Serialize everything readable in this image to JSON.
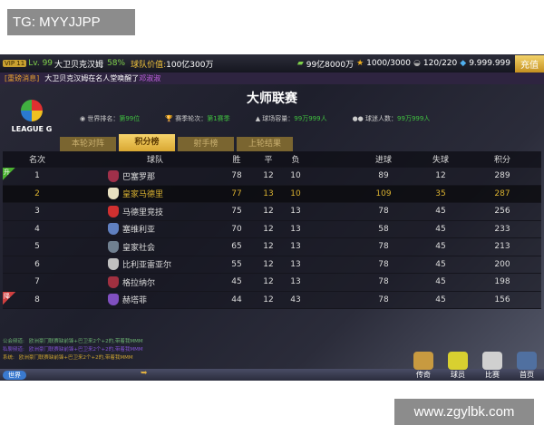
{
  "watermarks": {
    "top": "TG: MYYJJPP",
    "bottom": "www.zgylbk.com"
  },
  "topbar": {
    "vip": "VIP 11",
    "level": "Lv. 99",
    "player": "大卫贝克汉姆",
    "exp": "58%",
    "value_label": "球队价值:",
    "value": "100亿300万",
    "money": "99亿8000万",
    "stars": "1000/3000",
    "stamina": "120/220",
    "diamonds": "9.999.999",
    "charge": "充值"
  },
  "news": {
    "tag": "[重磅消息]",
    "text": "大卫贝克汉姆在名人堂唤醒了",
    "name": "邓淑淑"
  },
  "title": "大师联赛",
  "league_logo": "LEAGUE G",
  "stats": [
    {
      "label": "世界排名：",
      "value": "第99位"
    },
    {
      "label": "赛季轮次：",
      "value": "第1赛季"
    },
    {
      "label": "球场容量：",
      "value": "99万999人"
    },
    {
      "label": "球迷人数：",
      "value": "99万999人"
    }
  ],
  "tabs": [
    "本轮对阵",
    "积分榜",
    "射手榜",
    "上轮结果"
  ],
  "active_tab": 1,
  "table": {
    "headers": [
      "名次",
      "球队",
      "胜",
      "平",
      "负",
      "进球",
      "失球",
      "积分"
    ],
    "rows": [
      {
        "rank": "1",
        "team": "巴塞罗那",
        "w": "78",
        "d": "12",
        "l": "10",
        "gf": "89",
        "ga": "12",
        "pts": "289",
        "badge": "升",
        "crest": "#a0304a"
      },
      {
        "rank": "2",
        "team": "皇家马德里",
        "w": "77",
        "d": "13",
        "l": "10",
        "gf": "109",
        "ga": "35",
        "pts": "287",
        "crest": "#e8e0c0"
      },
      {
        "rank": "3",
        "team": "马德里竞技",
        "w": "75",
        "d": "12",
        "l": "13",
        "gf": "78",
        "ga": "45",
        "pts": "256",
        "crest": "#d03030"
      },
      {
        "rank": "4",
        "team": "塞维利亚",
        "w": "70",
        "d": "12",
        "l": "13",
        "gf": "58",
        "ga": "45",
        "pts": "233",
        "crest": "#6080c0"
      },
      {
        "rank": "5",
        "team": "皇家社会",
        "w": "65",
        "d": "12",
        "l": "13",
        "gf": "78",
        "ga": "45",
        "pts": "213",
        "crest": "#708090"
      },
      {
        "rank": "6",
        "team": "比利亚雷亚尔",
        "w": "55",
        "d": "12",
        "l": "13",
        "gf": "78",
        "ga": "45",
        "pts": "200",
        "crest": "#c0c0c0"
      },
      {
        "rank": "7",
        "team": "格拉纳尔",
        "w": "45",
        "d": "12",
        "l": "13",
        "gf": "78",
        "ga": "45",
        "pts": "198",
        "crest": "#a03040"
      },
      {
        "rank": "8",
        "team": "赫塔菲",
        "w": "44",
        "d": "12",
        "l": "43",
        "gf": "78",
        "ga": "45",
        "pts": "156",
        "badge": "降",
        "crest": "#8050c0"
      }
    ]
  },
  "chat": [
    {
      "channel": "公会频道:",
      "text": "欧洲豪门联赛缺前锋+巴卫来2个+2的,带着我MMM"
    },
    {
      "channel": "私聊频道:",
      "text": "欧洲豪门联赛缺前锋+巴卫来2个+2的,带着我MMM"
    },
    {
      "channel": "系统:",
      "text": "欧洲豪门联赛缺前锋+巴卫来2个+2的,带着我MMM"
    }
  ],
  "world_button": "世界",
  "nav": [
    {
      "label": "传奇",
      "color": "#c89a40"
    },
    {
      "label": "球员",
      "color": "#d8d030"
    },
    {
      "label": "比赛",
      "color": "#d0d0d0"
    },
    {
      "label": "首页",
      "color": "#5070a0"
    }
  ]
}
